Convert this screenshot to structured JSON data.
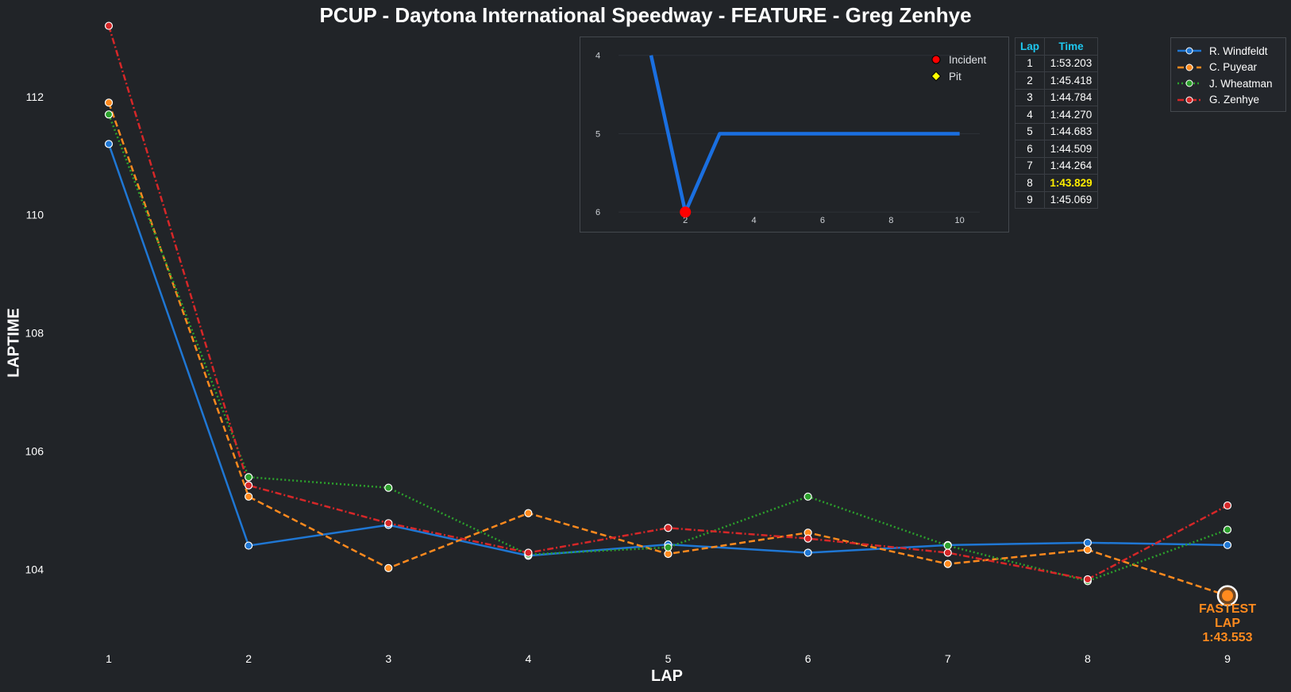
{
  "title": "PCUP - Daytona International Speedway - FEATURE - Greg Zenhye",
  "colors": {
    "background": "#212428",
    "text": "#ffffff",
    "highlight_orange": "#ff8a1e",
    "table_header": "#1ec8f0",
    "best_lap": "#ffee00",
    "incident": "#ff0000",
    "pit": "#ffff00",
    "inset_line": "#1a6fe0"
  },
  "chart_data": [
    {
      "type": "line",
      "title": "PCUP - Daytona International Speedway - FEATURE - Greg Zenhye",
      "xlabel": "LAP",
      "ylabel": "LAPTIME",
      "x": [
        1,
        2,
        3,
        4,
        5,
        6,
        7,
        8,
        9
      ],
      "ylim": [
        102.5,
        113.1
      ],
      "yticks": [
        104,
        106,
        108,
        110,
        112
      ],
      "grid": false,
      "legend_position": "top-right",
      "series": [
        {
          "name": "R. Windfeldt",
          "color": "#1f77d4",
          "dash": "solid",
          "values": [
            111.2,
            104.4,
            104.75,
            104.23,
            104.42,
            104.28,
            104.41,
            104.45,
            104.41
          ]
        },
        {
          "name": "C. Puyear",
          "color": "#ff8a1e",
          "dash": "dashed",
          "values": [
            111.9,
            105.23,
            104.02,
            104.95,
            104.26,
            104.62,
            104.09,
            104.33,
            103.553
          ]
        },
        {
          "name": "J. Wheatman",
          "color": "#2ca02c",
          "dash": "dotted",
          "values": [
            111.7,
            105.56,
            105.38,
            104.25,
            104.37,
            105.23,
            104.4,
            103.8,
            104.67
          ]
        },
        {
          "name": "G. Zenhye",
          "color": "#d62728",
          "dash": "dashdot",
          "values": [
            113.2,
            105.42,
            104.78,
            104.28,
            104.7,
            104.52,
            104.28,
            103.83,
            105.08
          ]
        }
      ],
      "annotations": [
        {
          "label": "FASTEST LAP",
          "value_label": "1:43.553",
          "x": 9,
          "y": 103.553,
          "series": "C. Puyear"
        }
      ]
    },
    {
      "type": "line",
      "xlim": [
        0.05,
        11.05
      ],
      "ylim": [
        6.2,
        3.77
      ],
      "y_inverted": true,
      "xticks": [
        2,
        4,
        6,
        8,
        10
      ],
      "yticks": [
        4,
        5,
        6
      ],
      "x": [
        1,
        2,
        3,
        4,
        5,
        6,
        7,
        8,
        9,
        10
      ],
      "values": [
        4,
        6,
        5,
        5,
        5,
        5,
        5,
        5,
        5,
        5
      ],
      "markers": [
        {
          "type": "Incident",
          "x": 2,
          "y": 6,
          "color": "#ff0000"
        }
      ],
      "legend": [
        {
          "label": "Incident",
          "marker": "circle",
          "color": "#ff0000"
        },
        {
          "label": "Pit",
          "marker": "diamond",
          "color": "#ffff00"
        }
      ]
    },
    {
      "type": "table",
      "columns": [
        "Lap",
        "Time"
      ],
      "rows": [
        [
          "1",
          "1:53.203"
        ],
        [
          "2",
          "1:45.418"
        ],
        [
          "3",
          "1:44.784"
        ],
        [
          "4",
          "1:44.270"
        ],
        [
          "5",
          "1:44.683"
        ],
        [
          "6",
          "1:44.509"
        ],
        [
          "7",
          "1:44.264"
        ],
        [
          "8",
          "1:43.829"
        ],
        [
          "9",
          "1:45.069"
        ]
      ],
      "best_row": 7
    }
  ]
}
